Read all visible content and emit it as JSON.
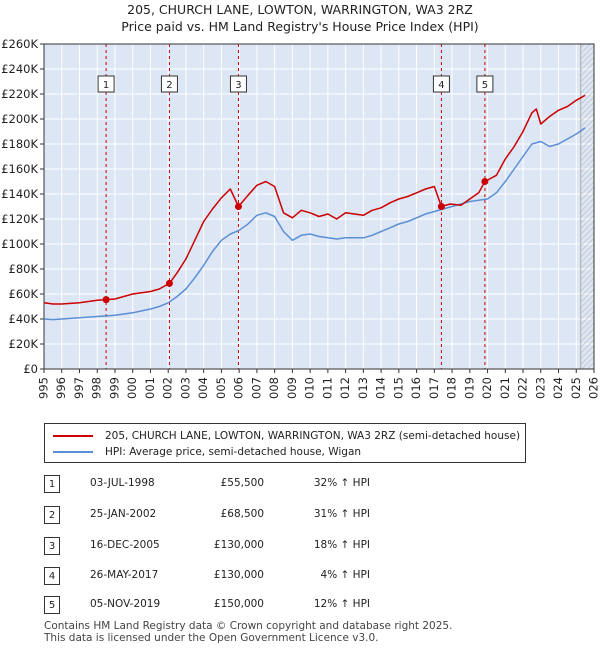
{
  "chart_data": {
    "type": "line",
    "title": "205, CHURCH LANE, LOWTON, WARRINGTON, WA3 2RZ",
    "subtitle": "Price paid vs. HM Land Registry's House Price Index (HPI)",
    "xlim": [
      1995,
      2026
    ],
    "ylim": [
      0,
      260000
    ],
    "y_ticks": [
      0,
      20000,
      40000,
      60000,
      80000,
      100000,
      120000,
      140000,
      160000,
      180000,
      200000,
      220000,
      240000,
      260000
    ],
    "y_tick_labels": [
      "£0",
      "£20K",
      "£40K",
      "£60K",
      "£80K",
      "£100K",
      "£120K",
      "£140K",
      "£160K",
      "£180K",
      "£200K",
      "£220K",
      "£240K",
      "£260K"
    ],
    "x_ticks": [
      1995,
      1996,
      1997,
      1998,
      1999,
      2000,
      2001,
      2002,
      2003,
      2004,
      2005,
      2006,
      2007,
      2008,
      2009,
      2010,
      2011,
      2012,
      2013,
      2014,
      2015,
      2016,
      2017,
      2018,
      2019,
      2020,
      2021,
      2022,
      2023,
      2024,
      2025,
      2026
    ],
    "x_tick_labels": [
      "1995",
      "1996",
      "1997",
      "1998",
      "1999",
      "2000",
      "2001",
      "2002",
      "2003",
      "2004",
      "2005",
      "2006",
      "2007",
      "2008",
      "2009",
      "2010",
      "2011",
      "2012",
      "2013",
      "2014",
      "2015",
      "2016",
      "2017",
      "2018",
      "2019",
      "2020",
      "2021",
      "2022",
      "2023",
      "2024",
      "2025",
      "2026"
    ],
    "grid": true,
    "background_band": {
      "from": 1995,
      "to": 2026,
      "color": "#dde6f4"
    },
    "forecast_start": 2025.25,
    "series": [
      {
        "name": "205, CHURCH LANE, LOWTON, WARRINGTON, WA3 2RZ (semi-detached house)",
        "color": "#cc0000",
        "x": [
          1995,
          1995.5,
          1996,
          1996.5,
          1997,
          1997.5,
          1998,
          1998.5,
          1999,
          1999.5,
          2000,
          2000.5,
          2001,
          2001.5,
          2002.07,
          2002.5,
          2003,
          2003.5,
          2004,
          2004.5,
          2005,
          2005.5,
          2005.96,
          2006.5,
          2007,
          2007.5,
          2008,
          2008.5,
          2009,
          2009.5,
          2010,
          2010.5,
          2011,
          2011.5,
          2012,
          2012.5,
          2013,
          2013.5,
          2014,
          2014.5,
          2015,
          2015.5,
          2016,
          2016.5,
          2017,
          2017.4,
          2017.9,
          2018.5,
          2019,
          2019.5,
          2019.85,
          2020.5,
          2021,
          2021.5,
          2022,
          2022.5,
          2022.75,
          2023,
          2023.5,
          2024,
          2024.5,
          2025,
          2025.5
        ],
        "y": [
          53000,
          52000,
          52000,
          52500,
          53000,
          54000,
          55000,
          55500,
          56000,
          58000,
          60000,
          61000,
          62000,
          64000,
          68500,
          77000,
          88000,
          103000,
          118000,
          128000,
          137000,
          144000,
          130000,
          139000,
          147000,
          150000,
          146000,
          125000,
          121000,
          127000,
          125000,
          122000,
          124000,
          120000,
          125000,
          124000,
          123000,
          127000,
          129000,
          133000,
          136000,
          138000,
          141000,
          144000,
          146000,
          130000,
          132000,
          131000,
          136000,
          141000,
          150000,
          155000,
          168000,
          178000,
          190000,
          205000,
          208000,
          196000,
          202000,
          207000,
          210000,
          215000,
          219000
        ]
      },
      {
        "name": "HPI: Average price, semi-detached house, Wigan",
        "color": "#5b8fd4",
        "x": [
          1995,
          1995.5,
          1996,
          1996.5,
          1997,
          1997.5,
          1998,
          1998.5,
          1999,
          1999.5,
          2000,
          2000.5,
          2001,
          2001.5,
          2002,
          2002.5,
          2003,
          2003.5,
          2004,
          2004.5,
          2005,
          2005.5,
          2006,
          2006.5,
          2007,
          2007.5,
          2008,
          2008.5,
          2009,
          2009.5,
          2010,
          2010.5,
          2011,
          2011.5,
          2012,
          2012.5,
          2013,
          2013.5,
          2014,
          2014.5,
          2015,
          2015.5,
          2016,
          2016.5,
          2017,
          2017.5,
          2018,
          2018.5,
          2019,
          2019.5,
          2020,
          2020.5,
          2021,
          2021.5,
          2022,
          2022.5,
          2023,
          2023.5,
          2024,
          2024.5,
          2025,
          2025.5
        ],
        "y": [
          40000,
          39500,
          40000,
          40500,
          41000,
          41500,
          42000,
          42500,
          43000,
          44000,
          45000,
          46500,
          48000,
          50000,
          53000,
          58000,
          64000,
          73000,
          83000,
          94000,
          103000,
          108000,
          111000,
          116000,
          123000,
          125000,
          122000,
          110000,
          103000,
          107000,
          108000,
          106000,
          105000,
          104000,
          105000,
          105000,
          105000,
          107000,
          110000,
          113000,
          116000,
          118000,
          121000,
          124000,
          126000,
          128000,
          130000,
          132000,
          134000,
          135000,
          136000,
          141000,
          150000,
          160000,
          170000,
          180000,
          182000,
          178000,
          180000,
          184000,
          188000,
          193000
        ]
      }
    ],
    "sales": [
      {
        "label": "1",
        "x": 1998.5,
        "y": 55500
      },
      {
        "label": "2",
        "x": 2002.07,
        "y": 68500
      },
      {
        "label": "3",
        "x": 2005.96,
        "y": 130000
      },
      {
        "label": "4",
        "x": 2017.4,
        "y": 130000
      },
      {
        "label": "5",
        "x": 2019.85,
        "y": 150000
      }
    ]
  },
  "legend": {
    "items": [
      {
        "label": "205, CHURCH LANE, LOWTON, WARRINGTON, WA3 2RZ (semi-detached house)",
        "color": "#cc0000"
      },
      {
        "label": "HPI: Average price, semi-detached house, Wigan",
        "color": "#5b8fd4"
      }
    ]
  },
  "transactions": [
    {
      "num": "1",
      "date": "03-JUL-1998",
      "price": "£55,500",
      "hpi": "32% ↑ HPI"
    },
    {
      "num": "2",
      "date": "25-JAN-2002",
      "price": "£68,500",
      "hpi": "31% ↑ HPI"
    },
    {
      "num": "3",
      "date": "16-DEC-2005",
      "price": "£130,000",
      "hpi": "18% ↑ HPI"
    },
    {
      "num": "4",
      "date": "26-MAY-2017",
      "price": "£130,000",
      "hpi": "4% ↑ HPI"
    },
    {
      "num": "5",
      "date": "05-NOV-2019",
      "price": "£150,000",
      "hpi": "12% ↑ HPI"
    }
  ],
  "footer": {
    "line1": "Contains HM Land Registry data © Crown copyright and database right 2025.",
    "line2": "This data is licensed under the Open Government Licence v3.0."
  }
}
